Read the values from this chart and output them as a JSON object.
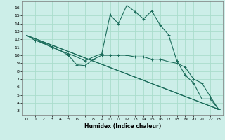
{
  "bg_color": "#cceee8",
  "grid_color": "#aaddcc",
  "line_color": "#1a6b5a",
  "xlabel": "Humidex (Indice chaleur)",
  "xlim": [
    -0.5,
    23.5
  ],
  "ylim": [
    2.5,
    16.8
  ],
  "xticks": [
    0,
    1,
    2,
    3,
    4,
    5,
    6,
    7,
    8,
    9,
    10,
    11,
    12,
    13,
    14,
    15,
    16,
    17,
    18,
    19,
    20,
    21,
    22,
    23
  ],
  "yticks": [
    3,
    4,
    5,
    6,
    7,
    8,
    9,
    10,
    11,
    12,
    13,
    14,
    15,
    16
  ],
  "line1_x": [
    0,
    1,
    2,
    3,
    4,
    5,
    6,
    7,
    8,
    9,
    10,
    11,
    12,
    13,
    14,
    15,
    16,
    17,
    18,
    19,
    20,
    21,
    22,
    23
  ],
  "line1_y": [
    12.5,
    11.9,
    11.6,
    11.1,
    10.6,
    10.2,
    9.8,
    9.3,
    9.8,
    10.2,
    15.1,
    14.0,
    16.3,
    15.5,
    14.6,
    15.6,
    13.8,
    12.6,
    9.3,
    7.5,
    6.5,
    4.5,
    4.5,
    3.2
  ],
  "line2_x": [
    0,
    1,
    2,
    3,
    4,
    5,
    6,
    7,
    8,
    9,
    10,
    11,
    12,
    13,
    14,
    15,
    16,
    17,
    18,
    19,
    20,
    21,
    22,
    23
  ],
  "line2_y": [
    12.5,
    11.9,
    11.5,
    11.0,
    10.6,
    10.0,
    8.8,
    8.7,
    9.5,
    10.0,
    10.0,
    10.0,
    10.0,
    9.8,
    9.8,
    9.5,
    9.5,
    9.2,
    9.0,
    8.5,
    7.0,
    6.5,
    4.8,
    3.2
  ],
  "line3_x": [
    0,
    23
  ],
  "line3_y": [
    12.5,
    3.2
  ],
  "line4_x": [
    0,
    23
  ],
  "line4_y": [
    12.5,
    3.2
  ],
  "marker": "+"
}
